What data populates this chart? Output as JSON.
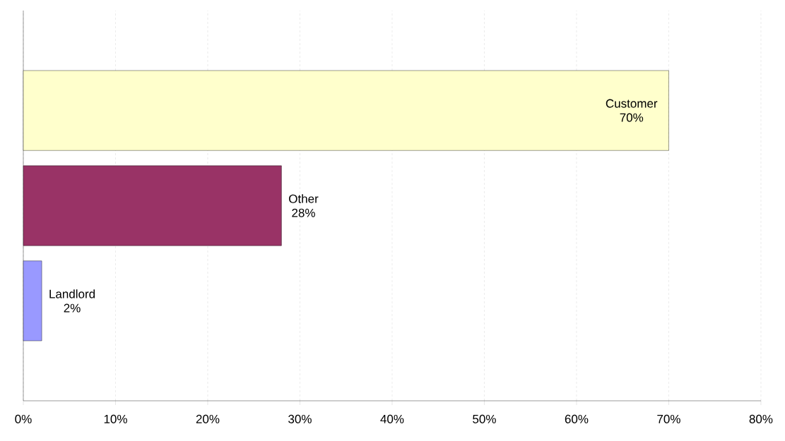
{
  "chart_data": {
    "type": "bar",
    "orientation": "horizontal",
    "categories": [
      "Customer",
      "Other",
      "Landlord"
    ],
    "values": [
      70,
      28,
      2
    ],
    "value_labels": [
      "70%",
      "28%",
      "2%"
    ],
    "colors": [
      "#ffffcc",
      "#993366",
      "#9999ff"
    ],
    "xlim": [
      0,
      80
    ],
    "xticks": [
      {
        "value": 0,
        "label": "0%"
      },
      {
        "value": 10,
        "label": "10%"
      },
      {
        "value": 20,
        "label": "20%"
      },
      {
        "value": 30,
        "label": "30%"
      },
      {
        "value": 40,
        "label": "40%"
      },
      {
        "value": 50,
        "label": "50%"
      },
      {
        "value": 60,
        "label": "60%"
      },
      {
        "value": 70,
        "label": "70%"
      },
      {
        "value": 80,
        "label": "80%"
      }
    ],
    "grid": "x",
    "tick_labels": "x",
    "legend": false
  }
}
